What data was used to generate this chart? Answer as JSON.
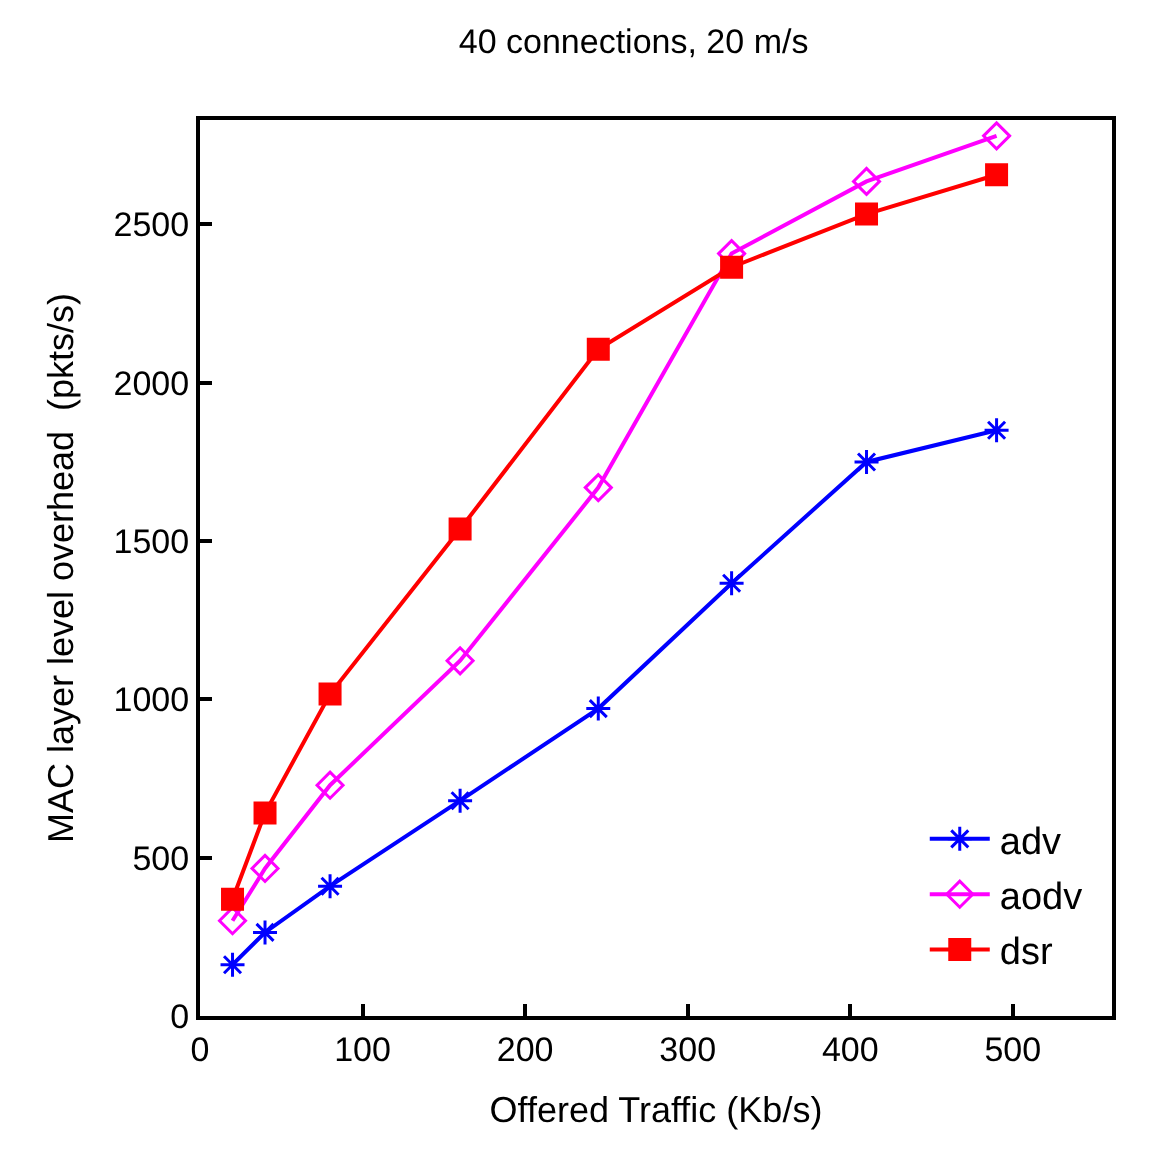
{
  "chart_data": {
    "type": "line",
    "title": "40 connections, 20 m/s",
    "xlabel": "Offered Traffic (Kb/s)",
    "ylabel": "MAC layer level overhead  (pkts/s)",
    "xlim": [
      0,
      561
    ],
    "ylim": [
      0,
      2830
    ],
    "xticks": [
      0,
      100,
      200,
      300,
      400,
      500
    ],
    "yticks": [
      0,
      500,
      1000,
      1500,
      2000,
      2500
    ],
    "x": [
      20,
      40,
      80,
      160,
      245,
      327,
      410,
      490
    ],
    "series": [
      {
        "name": "adv",
        "color": "#0000ff",
        "marker": "cross",
        "values": [
          162,
          264,
          410,
          680,
          971,
          1367,
          1750,
          1850
        ]
      },
      {
        "name": "aodv",
        "color": "#ff00ff",
        "marker": "diamond",
        "values": [
          301,
          466,
          729,
          1122,
          1669,
          2408,
          2636,
          2780
        ]
      },
      {
        "name": "dsr",
        "color": "#ff0000",
        "marker": "square",
        "values": [
          369,
          641,
          1017,
          1538,
          2106,
          2365,
          2533,
          2657
        ]
      }
    ],
    "legend": "bottom right"
  }
}
